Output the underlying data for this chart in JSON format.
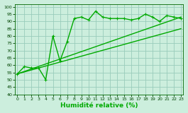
{
  "title": "",
  "xlabel": "Humidité relative (%)",
  "ylabel": "",
  "bg_color": "#cceedd",
  "grid_color": "#99ccbb",
  "line_color": "#00aa00",
  "xlim": [
    0,
    23
  ],
  "ylim": [
    40,
    102
  ],
  "yticks": [
    40,
    45,
    50,
    55,
    60,
    65,
    70,
    75,
    80,
    85,
    90,
    95,
    100
  ],
  "xticks": [
    0,
    1,
    2,
    3,
    4,
    5,
    6,
    7,
    8,
    9,
    10,
    11,
    12,
    13,
    14,
    15,
    16,
    17,
    18,
    19,
    20,
    21,
    22,
    23
  ],
  "line1_x": [
    0,
    1,
    2,
    3,
    4,
    5,
    6,
    7,
    8,
    9,
    10,
    11,
    12,
    13,
    14,
    15,
    16,
    17,
    18,
    19,
    20,
    21,
    22,
    23
  ],
  "line1_y": [
    54,
    59,
    58,
    58,
    50,
    80,
    63,
    76,
    92,
    93,
    91,
    97,
    93,
    92,
    92,
    92,
    91,
    92,
    95,
    93,
    90,
    94,
    93,
    92
  ],
  "line2_x": [
    0,
    23
  ],
  "line2_y": [
    54,
    93
  ],
  "line3_x": [
    0,
    23
  ],
  "line3_y": [
    54,
    85
  ],
  "marker": "+",
  "markersize": 3,
  "linewidth": 1.0
}
